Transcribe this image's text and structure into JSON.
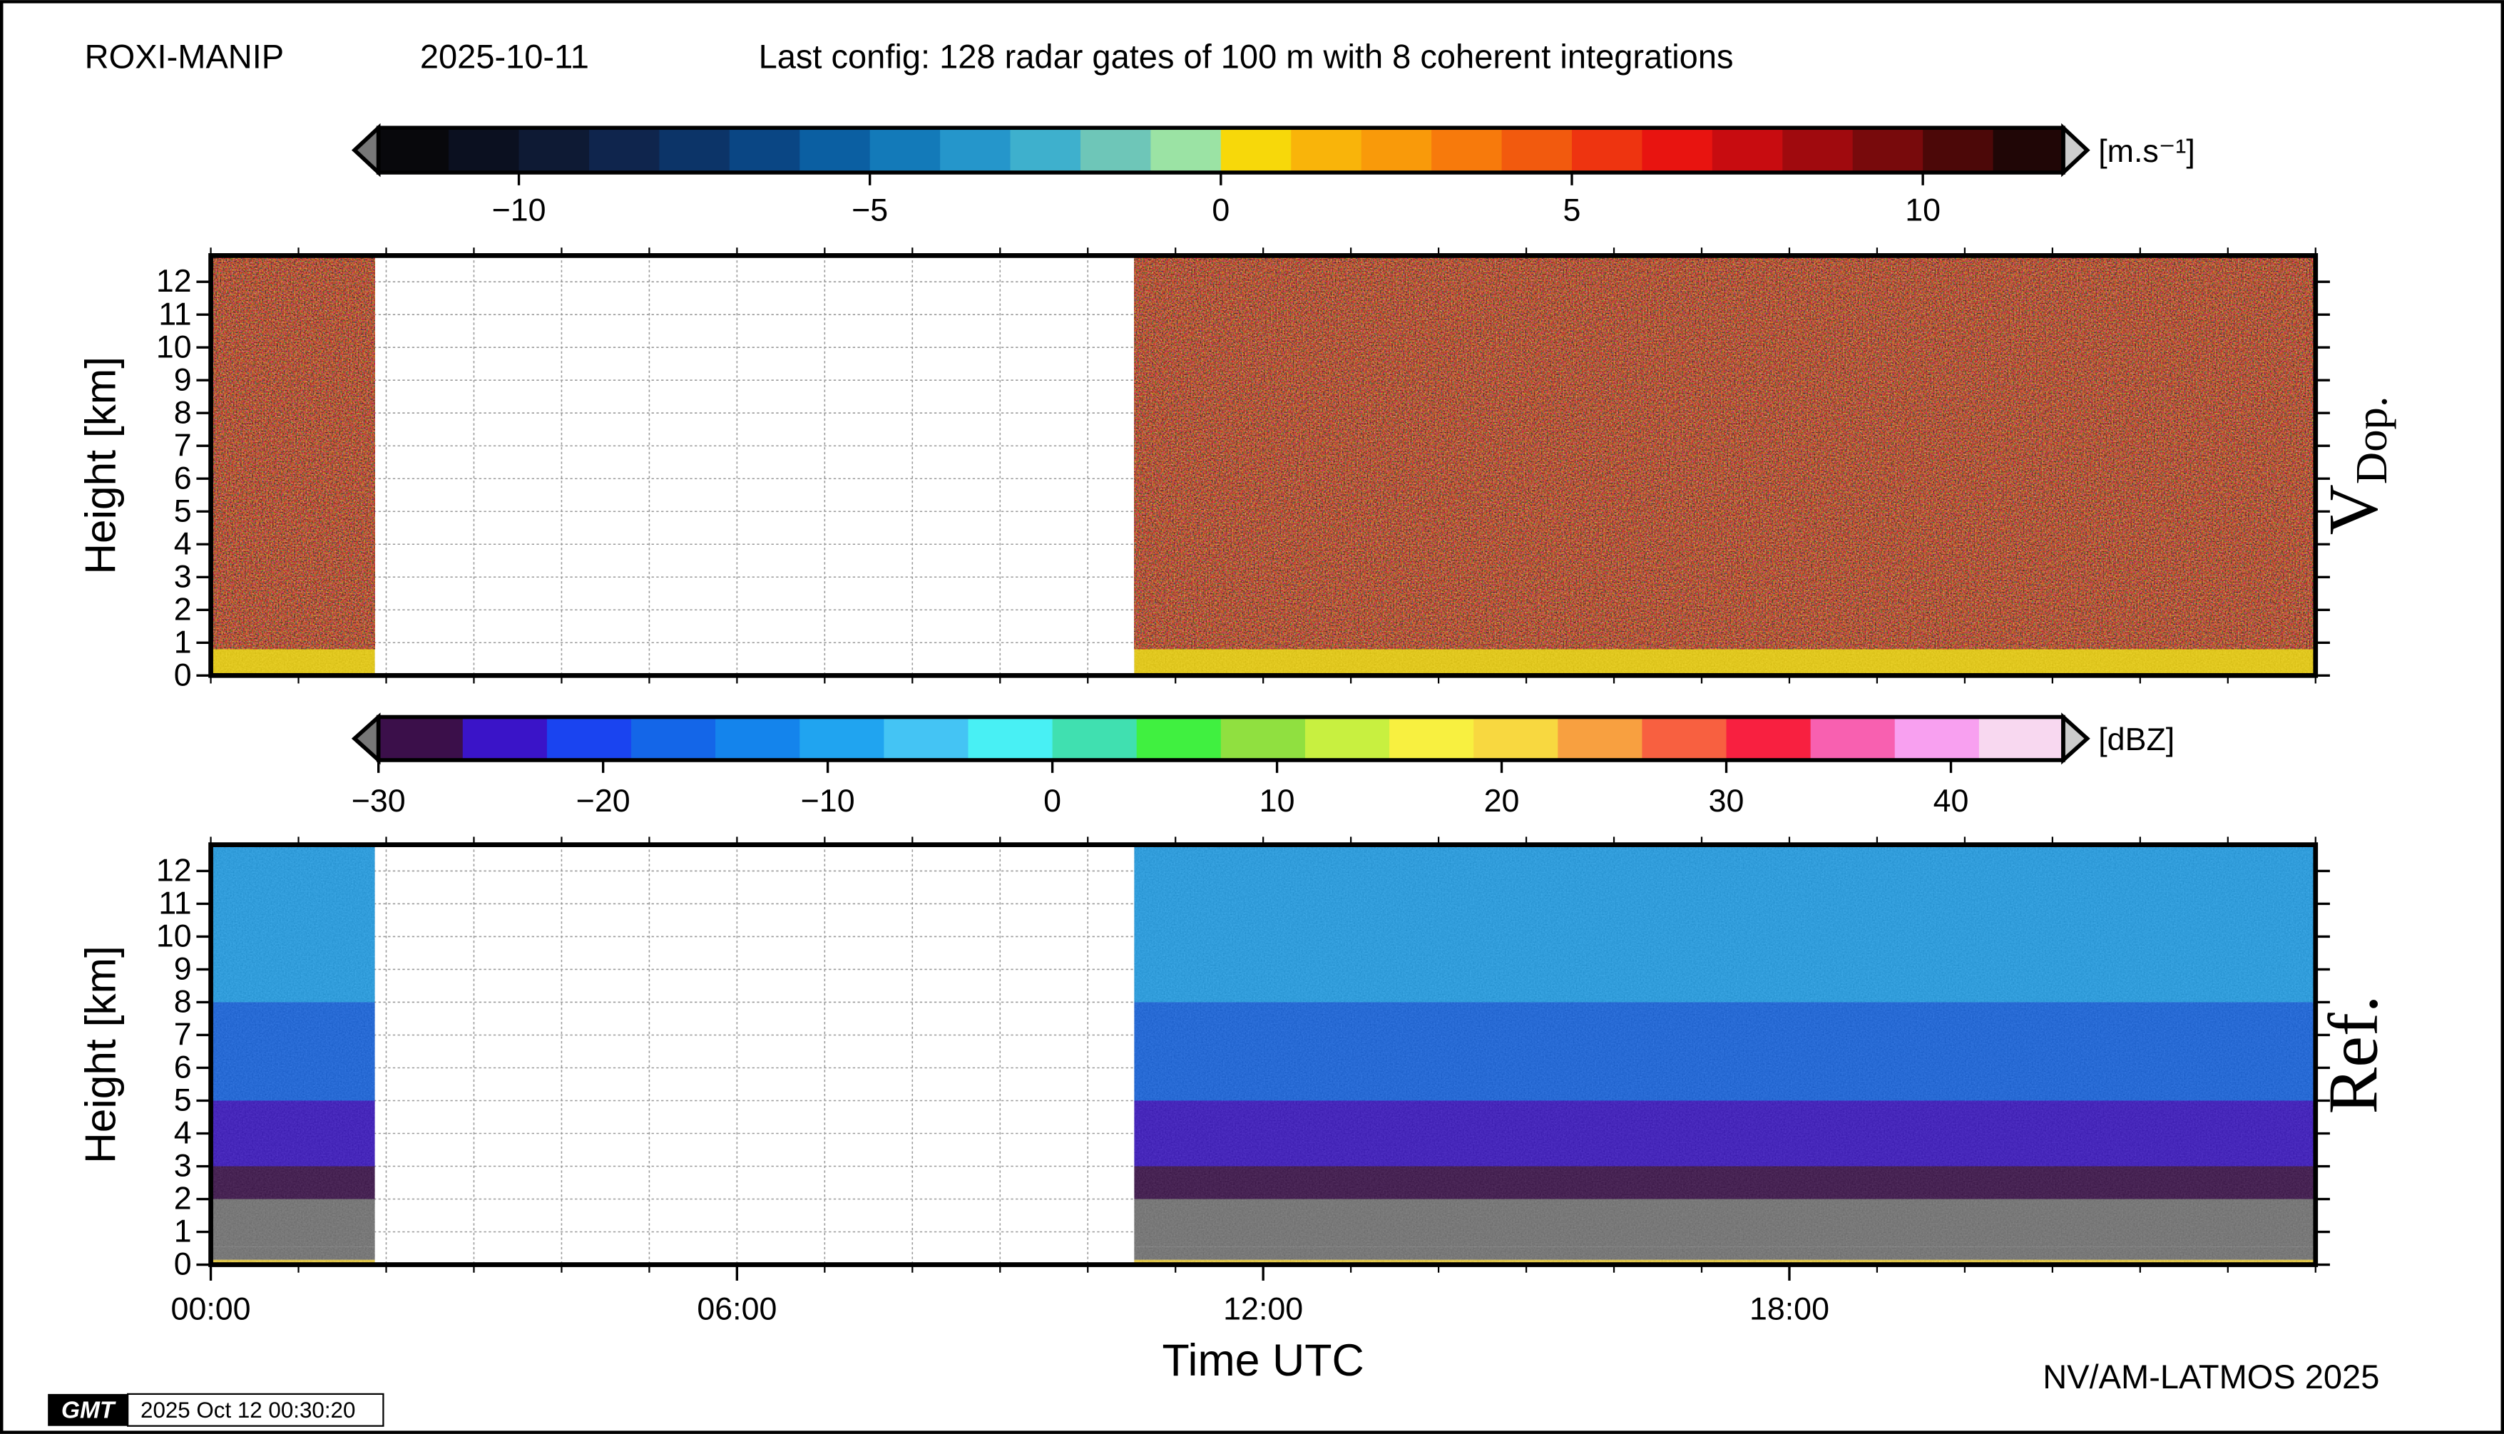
{
  "header": {
    "project": "ROXI-MANIP",
    "date": "2025-10-11",
    "config": "Last config: 128 radar gates of 100 m with 8 coherent integrations"
  },
  "footer": {
    "logo": "GMT",
    "timestamp": "2025 Oct 12 00:30:20",
    "credit": "NV/AM-LATMOS 2025"
  },
  "chart_data": [
    {
      "type": "heatmap",
      "panel_label": "V",
      "panel_label_sub": "Dop.",
      "ylabel": "Height [km]",
      "colorbar": {
        "unit": "[m.s⁻¹]",
        "lim": [
          -12,
          12
        ],
        "ticks": [
          {
            "value": -10,
            "label": "−10"
          },
          {
            "value": -5,
            "label": "−5"
          },
          0,
          5,
          10
        ],
        "colors": [
          "#08080c",
          "#0b1020",
          "#0e1a34",
          "#0f254d",
          "#0c3468",
          "#0a4684",
          "#0b5fa2",
          "#137ab9",
          "#2596cb",
          "#3eb0cd",
          "#6ec6b8",
          "#9be3a4",
          "#f7d80a",
          "#f9b40a",
          "#f99a0a",
          "#f77a0c",
          "#f25a0e",
          "#ee3410",
          "#e81410",
          "#c80c10",
          "#a00a0e",
          "#780a0c",
          "#4c0808",
          "#200606"
        ],
        "under_color": "#777777",
        "over_color": "#cccccc"
      },
      "x_bins": [
        0,
        1.87,
        10.53,
        24
      ],
      "y_bins": [
        0,
        0.8,
        12.8
      ],
      "values": [
        [
          0.2,
          null,
          0.2
        ],
        [
          null,
          null,
          null
        ]
      ],
      "xlim": [
        0,
        24
      ],
      "ylim": [
        0,
        12.8
      ],
      "yticks": [
        0,
        1,
        2,
        3,
        4,
        5,
        6,
        7,
        8,
        9,
        10,
        11,
        12
      ],
      "xgrid": [
        0,
        1,
        2,
        3,
        4,
        5,
        6,
        7,
        8,
        9,
        10,
        11,
        12,
        13,
        14,
        15,
        16,
        17,
        18,
        19,
        20,
        21,
        22,
        23,
        24
      ],
      "grid": true
    },
    {
      "type": "heatmap",
      "panel_label": "Ref.",
      "ylabel": "Height [km]",
      "xlabel": "Time UTC",
      "colorbar": {
        "unit": "[dBZ]",
        "lim": [
          -30,
          45
        ],
        "ticks": [
          {
            "value": -30,
            "label": "−30"
          },
          {
            "value": -20,
            "label": "−20"
          },
          {
            "value": -10,
            "label": "−10"
          },
          0,
          10,
          20,
          30,
          40
        ],
        "colors": [
          "#3b0f4a",
          "#3a14c8",
          "#1a44f0",
          "#1466e8",
          "#1484ec",
          "#20a4f0",
          "#44c4f4",
          "#48f0f4",
          "#40e0b0",
          "#40f040",
          "#90e040",
          "#c8f040",
          "#f8f040",
          "#f8d840",
          "#f8a040",
          "#f86040",
          "#f82040",
          "#f860b0",
          "#f8a0f0",
          "#f8d8f0"
        ],
        "under_color": "#777777",
        "over_color": "#cccccc"
      },
      "x_bins": [
        0,
        1.87,
        10.53,
        24
      ],
      "y_bins": [
        0,
        0.15,
        0.55,
        2,
        3,
        5,
        8,
        12.8
      ],
      "values": [
        [
          22,
          null,
          22
        ],
        [
          -32,
          null,
          -32
        ],
        [
          -32,
          null,
          -32
        ],
        [
          -28,
          null,
          -28
        ],
        [
          -24,
          null,
          -24
        ],
        [
          -18,
          null,
          -18
        ],
        [
          -10,
          null,
          -10
        ]
      ],
      "xlim": [
        0,
        24
      ],
      "ylim": [
        0,
        12.8
      ],
      "yticks": [
        0,
        1,
        2,
        3,
        4,
        5,
        6,
        7,
        8,
        9,
        10,
        11,
        12
      ],
      "xticks": [
        {
          "value": 0,
          "label": "00:00"
        },
        {
          "value": 6,
          "label": "06:00"
        },
        {
          "value": 12,
          "label": "12:00"
        },
        {
          "value": 18,
          "label": "18:00"
        }
      ],
      "xgrid": [
        0,
        1,
        2,
        3,
        4,
        5,
        6,
        7,
        8,
        9,
        10,
        11,
        12,
        13,
        14,
        15,
        16,
        17,
        18,
        19,
        20,
        21,
        22,
        23,
        24
      ],
      "grid": true
    }
  ]
}
